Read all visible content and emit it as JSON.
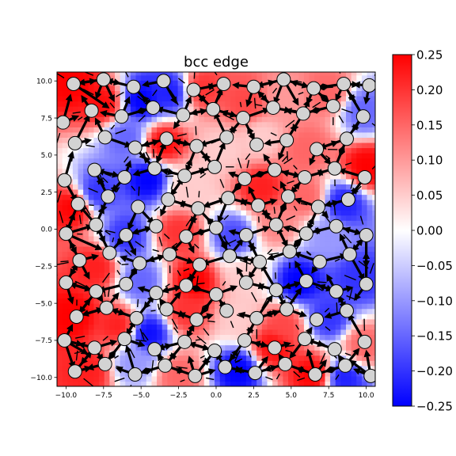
{
  "chart_data": {
    "type": "heatmap",
    "title": "bcc edge",
    "xlabel": "",
    "ylabel": "",
    "xlim": [
      -10.6,
      10.6
    ],
    "ylim": [
      -10.6,
      10.6
    ],
    "x_ticks": [
      -10.0,
      -7.5,
      -5.0,
      -2.5,
      0.0,
      2.5,
      5.0,
      7.5,
      10.0
    ],
    "x_tick_labels": [
      "−10.0",
      "−7.5",
      "−5.0",
      "−2.5",
      "0.0",
      "2.5",
      "5.0",
      "7.5",
      "10.0"
    ],
    "y_ticks": [
      -10.0,
      -7.5,
      -5.0,
      -2.5,
      0.0,
      2.5,
      5.0,
      7.5,
      10.0
    ],
    "y_tick_labels": [
      "−10.0",
      "−7.5",
      "−5.0",
      "−2.5",
      "0.0",
      "2.5",
      "5.0",
      "7.5",
      "10.0"
    ],
    "colormap": {
      "name": "bwr",
      "low_color": "#0000ff",
      "mid_color": "#ffffff",
      "high_color": "#ff0000",
      "vmin": -0.25,
      "vmax": 0.25
    },
    "colorbar": {
      "ticks": [
        0.25,
        0.2,
        0.15,
        0.1,
        0.05,
        0.0,
        -0.05,
        -0.1,
        -0.15,
        -0.2,
        -0.25
      ],
      "tick_labels": [
        "0.25",
        "0.20",
        "0.15",
        "0.10",
        "0.05",
        "0.00",
        "−0.05",
        "−0.10",
        "−0.15",
        "−0.20",
        "−0.25"
      ]
    },
    "field_sources": [
      {
        "x": -9.5,
        "y": 9.8,
        "v": 0.25
      },
      {
        "x": -7.5,
        "y": 8.5,
        "v": 0.24
      },
      {
        "x": -5.0,
        "y": 8.7,
        "v": -0.25
      },
      {
        "x": -3.0,
        "y": 9.3,
        "v": -0.22
      },
      {
        "x": -1.0,
        "y": 9.5,
        "v": 0.2
      },
      {
        "x": 2.0,
        "y": 8.5,
        "v": 0.18
      },
      {
        "x": 4.5,
        "y": 8.8,
        "v": 0.1
      },
      {
        "x": 7.5,
        "y": 9.2,
        "v": 0.15
      },
      {
        "x": 9.8,
        "y": 8.0,
        "v": -0.15
      },
      {
        "x": -6.0,
        "y": 6.2,
        "v": -0.15
      },
      {
        "x": -3.5,
        "y": 5.8,
        "v": 0.24
      },
      {
        "x": 0.5,
        "y": 5.4,
        "v": 0.05
      },
      {
        "x": 3.0,
        "y": 6.2,
        "v": 0.05
      },
      {
        "x": 6.0,
        "y": 5.4,
        "v": 0.15
      },
      {
        "x": 10.0,
        "y": 4.2,
        "v": 0.25
      },
      {
        "x": -9.5,
        "y": 1.5,
        "v": 0.25
      },
      {
        "x": -8.0,
        "y": 2.5,
        "v": -0.2
      },
      {
        "x": -4.5,
        "y": 3.4,
        "v": -0.25
      },
      {
        "x": -2.0,
        "y": 2.8,
        "v": 0.05
      },
      {
        "x": 3.0,
        "y": 2.8,
        "v": 0.22
      },
      {
        "x": 6.0,
        "y": 2.2,
        "v": 0.15
      },
      {
        "x": 8.5,
        "y": 1.8,
        "v": -0.22
      },
      {
        "x": -6.0,
        "y": -0.5,
        "v": -0.2
      },
      {
        "x": -2.5,
        "y": -0.2,
        "v": 0.2
      },
      {
        "x": 1.2,
        "y": -0.5,
        "v": -0.18
      },
      {
        "x": 4.0,
        "y": 0.3,
        "v": 0.12
      },
      {
        "x": 7.5,
        "y": -0.5,
        "v": -0.1
      },
      {
        "x": -8.0,
        "y": -2.5,
        "v": 0.22
      },
      {
        "x": -5.0,
        "y": -3.5,
        "v": -0.15
      },
      {
        "x": -1.5,
        "y": -3.5,
        "v": 0.25
      },
      {
        "x": 2.0,
        "y": -3.0,
        "v": 0.05
      },
      {
        "x": 5.5,
        "y": -3.5,
        "v": -0.25
      },
      {
        "x": 9.5,
        "y": -3.2,
        "v": -0.2
      },
      {
        "x": -9.5,
        "y": -5.8,
        "v": 0.25
      },
      {
        "x": -6.5,
        "y": -6.5,
        "v": 0.22
      },
      {
        "x": -4.5,
        "y": -7.0,
        "v": -0.24
      },
      {
        "x": -2.0,
        "y": -5.5,
        "v": 0.2
      },
      {
        "x": 1.5,
        "y": -6.0,
        "v": 0.05
      },
      {
        "x": 4.5,
        "y": -6.5,
        "v": 0.18
      },
      {
        "x": 7.5,
        "y": -6.0,
        "v": -0.2
      },
      {
        "x": 9.8,
        "y": -7.8,
        "v": 0.15
      },
      {
        "x": -8.5,
        "y": -9.5,
        "v": 0.22
      },
      {
        "x": -5.5,
        "y": -9.0,
        "v": -0.1
      },
      {
        "x": -2.5,
        "y": -9.8,
        "v": 0.15
      },
      {
        "x": 1.5,
        "y": -9.5,
        "v": -0.25
      },
      {
        "x": 3.8,
        "y": -7.9,
        "v": 0.24
      },
      {
        "x": 6.5,
        "y": -9.8,
        "v": 0.25
      },
      {
        "x": 8.5,
        "y": -10.0,
        "v": -0.22
      }
    ],
    "atoms": [
      {
        "x": -9.5,
        "y": 9.8
      },
      {
        "x": -7.5,
        "y": 10.1
      },
      {
        "x": -5.5,
        "y": 9.6
      },
      {
        "x": -3.5,
        "y": 10.0
      },
      {
        "x": -1.5,
        "y": 9.4
      },
      {
        "x": 0.5,
        "y": 9.8
      },
      {
        "x": 2.5,
        "y": 9.6
      },
      {
        "x": 4.5,
        "y": 10.1
      },
      {
        "x": 6.5,
        "y": 9.5
      },
      {
        "x": 8.5,
        "y": 9.8
      },
      {
        "x": 10.2,
        "y": 9.7
      },
      {
        "x": -10.2,
        "y": 7.2
      },
      {
        "x": -8.3,
        "y": 8.0
      },
      {
        "x": -6.3,
        "y": 7.6
      },
      {
        "x": -4.2,
        "y": 8.2
      },
      {
        "x": -2.2,
        "y": 7.7
      },
      {
        "x": -0.2,
        "y": 8.1
      },
      {
        "x": 1.8,
        "y": 7.5
      },
      {
        "x": 3.8,
        "y": 8.2
      },
      {
        "x": 5.8,
        "y": 7.8
      },
      {
        "x": 7.8,
        "y": 8.3
      },
      {
        "x": 9.8,
        "y": 7.6
      },
      {
        "x": -9.4,
        "y": 5.8
      },
      {
        "x": -7.4,
        "y": 6.2
      },
      {
        "x": -5.4,
        "y": 5.5
      },
      {
        "x": -3.3,
        "y": 6.1
      },
      {
        "x": -1.3,
        "y": 5.6
      },
      {
        "x": 0.7,
        "y": 6.2
      },
      {
        "x": 2.7,
        "y": 5.7
      },
      {
        "x": 4.7,
        "y": 6.0
      },
      {
        "x": 6.7,
        "y": 5.4
      },
      {
        "x": 8.7,
        "y": 6.1
      },
      {
        "x": -10.1,
        "y": 3.3
      },
      {
        "x": -8.1,
        "y": 4.0
      },
      {
        "x": -6.1,
        "y": 3.5
      },
      {
        "x": -4.1,
        "y": 4.1
      },
      {
        "x": -2.1,
        "y": 3.6
      },
      {
        "x": -0.1,
        "y": 4.2
      },
      {
        "x": 1.9,
        "y": 3.4
      },
      {
        "x": 3.9,
        "y": 4.0
      },
      {
        "x": 5.9,
        "y": 3.5
      },
      {
        "x": 7.9,
        "y": 4.1
      },
      {
        "x": 9.9,
        "y": 3.5
      },
      {
        "x": -9.2,
        "y": 1.7
      },
      {
        "x": -7.2,
        "y": 2.2
      },
      {
        "x": -5.2,
        "y": 1.5
      },
      {
        "x": -3.2,
        "y": 2.0
      },
      {
        "x": -1.2,
        "y": 1.4
      },
      {
        "x": 0.8,
        "y": 2.1
      },
      {
        "x": 2.8,
        "y": 1.6
      },
      {
        "x": 4.8,
        "y": 2.2
      },
      {
        "x": 6.8,
        "y": 1.5
      },
      {
        "x": 8.8,
        "y": 2.0
      },
      {
        "x": -10.0,
        "y": -0.3
      },
      {
        "x": -8.0,
        "y": 0.3
      },
      {
        "x": -6.0,
        "y": -0.4
      },
      {
        "x": -4.0,
        "y": 0.2
      },
      {
        "x": -2.0,
        "y": -0.5
      },
      {
        "x": 0.0,
        "y": 0.1
      },
      {
        "x": 2.0,
        "y": -0.4
      },
      {
        "x": 4.0,
        "y": 0.3
      },
      {
        "x": 6.0,
        "y": -0.3
      },
      {
        "x": 8.0,
        "y": 0.2
      },
      {
        "x": 10.0,
        "y": -0.4
      },
      {
        "x": -9.1,
        "y": -2.1
      },
      {
        "x": -7.1,
        "y": -1.6
      },
      {
        "x": -5.1,
        "y": -2.3
      },
      {
        "x": -3.1,
        "y": -1.7
      },
      {
        "x": -1.1,
        "y": -2.4
      },
      {
        "x": 0.9,
        "y": -1.8
      },
      {
        "x": 2.9,
        "y": -2.2
      },
      {
        "x": 4.9,
        "y": -1.5
      },
      {
        "x": 6.9,
        "y": -2.2
      },
      {
        "x": 8.9,
        "y": -1.7
      },
      {
        "x": -10.0,
        "y": -3.6
      },
      {
        "x": -8.0,
        "y": -4.2
      },
      {
        "x": -6.0,
        "y": -3.7
      },
      {
        "x": -4.0,
        "y": -4.3
      },
      {
        "x": -2.0,
        "y": -3.8
      },
      {
        "x": 0.0,
        "y": -4.4
      },
      {
        "x": 2.0,
        "y": -3.6
      },
      {
        "x": 4.0,
        "y": -4.1
      },
      {
        "x": 6.0,
        "y": -3.5
      },
      {
        "x": 8.0,
        "y": -4.2
      },
      {
        "x": 10.0,
        "y": -3.7
      },
      {
        "x": -9.3,
        "y": -5.9
      },
      {
        "x": -7.3,
        "y": -5.3
      },
      {
        "x": -5.3,
        "y": -6.0
      },
      {
        "x": -3.3,
        "y": -5.4
      },
      {
        "x": -1.3,
        "y": -6.1
      },
      {
        "x": 0.7,
        "y": -5.5
      },
      {
        "x": 2.7,
        "y": -6.0
      },
      {
        "x": 4.7,
        "y": -5.4
      },
      {
        "x": 6.7,
        "y": -6.1
      },
      {
        "x": 8.7,
        "y": -5.5
      },
      {
        "x": -10.1,
        "y": -7.5
      },
      {
        "x": -8.1,
        "y": -8.0
      },
      {
        "x": -6.1,
        "y": -7.4
      },
      {
        "x": -4.1,
        "y": -8.1
      },
      {
        "x": -2.1,
        "y": -7.6
      },
      {
        "x": -0.1,
        "y": -8.2
      },
      {
        "x": 1.9,
        "y": -7.5
      },
      {
        "x": 3.9,
        "y": -8.0
      },
      {
        "x": 5.9,
        "y": -7.4
      },
      {
        "x": 7.9,
        "y": -8.1
      },
      {
        "x": 9.9,
        "y": -7.6
      },
      {
        "x": -9.4,
        "y": -9.6
      },
      {
        "x": -7.4,
        "y": -9.1
      },
      {
        "x": -5.4,
        "y": -9.8
      },
      {
        "x": -3.4,
        "y": -9.2
      },
      {
        "x": -1.4,
        "y": -9.9
      },
      {
        "x": 0.6,
        "y": -9.3
      },
      {
        "x": 2.6,
        "y": -9.7
      },
      {
        "x": 4.6,
        "y": -9.1
      },
      {
        "x": 6.6,
        "y": -9.8
      },
      {
        "x": 8.6,
        "y": -9.2
      },
      {
        "x": 10.3,
        "y": -9.9
      }
    ]
  }
}
